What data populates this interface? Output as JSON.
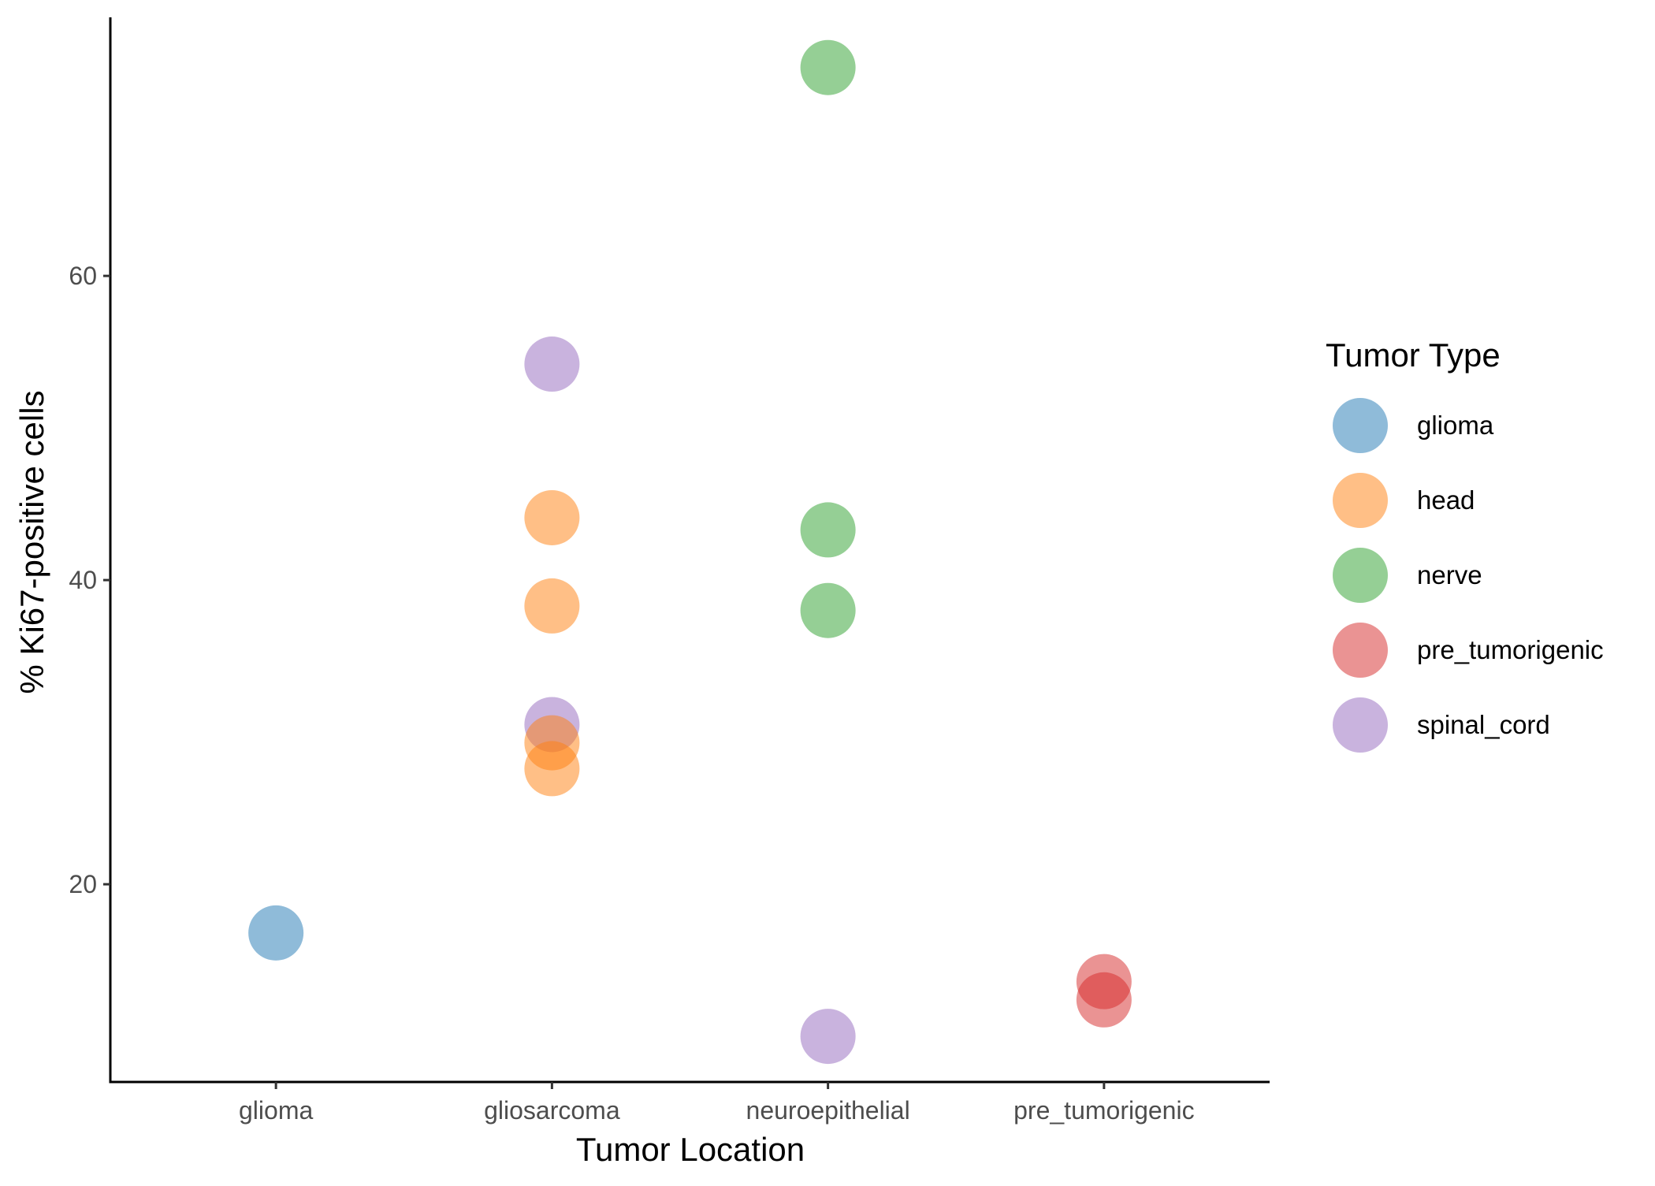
{
  "chart_data": {
    "type": "scatter",
    "title": "",
    "xlabel": "Tumor Location",
    "ylabel": "% Ki67-positive cells",
    "categories": [
      "glioma",
      "gliosarcoma",
      "neuroepithelial",
      "pre_tumorigenic"
    ],
    "ylim": [
      7,
      77
    ],
    "yticks": [
      20,
      40,
      60
    ],
    "grid": false,
    "legend": {
      "title": "Tumor Type",
      "position": "right"
    },
    "series": [
      {
        "name": "glioma",
        "color": "#1f77b4",
        "points": [
          {
            "x": "glioma",
            "y": 16.8
          }
        ]
      },
      {
        "name": "head",
        "color": "#ff7f0e",
        "points": [
          {
            "x": "gliosarcoma",
            "y": 44.1
          },
          {
            "x": "gliosarcoma",
            "y": 38.3
          },
          {
            "x": "gliosarcoma",
            "y": 29.3
          },
          {
            "x": "gliosarcoma",
            "y": 27.6
          }
        ]
      },
      {
        "name": "nerve",
        "color": "#2ca02c",
        "points": [
          {
            "x": "neuroepithelial",
            "y": 73.7
          },
          {
            "x": "neuroepithelial",
            "y": 43.3
          },
          {
            "x": "neuroepithelial",
            "y": 38.0
          }
        ]
      },
      {
        "name": "pre_tumorigenic",
        "color": "#d62728",
        "points": [
          {
            "x": "pre_tumorigenic",
            "y": 13.6
          },
          {
            "x": "pre_tumorigenic",
            "y": 12.4
          }
        ]
      },
      {
        "name": "spinal_cord",
        "color": "#9467bd",
        "points": [
          {
            "x": "gliosarcoma",
            "y": 54.2
          },
          {
            "x": "gliosarcoma",
            "y": 30.5
          },
          {
            "x": "neuroepithelial",
            "y": 10.0
          }
        ]
      }
    ],
    "draw_order": [
      [
        "spinal_cord",
        0
      ],
      [
        "head",
        0
      ],
      [
        "head",
        1
      ],
      [
        "spinal_cord",
        1
      ],
      [
        "head",
        2
      ],
      [
        "head",
        3
      ],
      [
        "nerve",
        0
      ],
      [
        "nerve",
        1
      ],
      [
        "nerve",
        2
      ],
      [
        "glioma",
        0
      ],
      [
        "spinal_cord",
        2
      ],
      [
        "pre_tumorigenic",
        0
      ],
      [
        "pre_tumorigenic",
        1
      ]
    ],
    "point_opacity": 0.5
  }
}
